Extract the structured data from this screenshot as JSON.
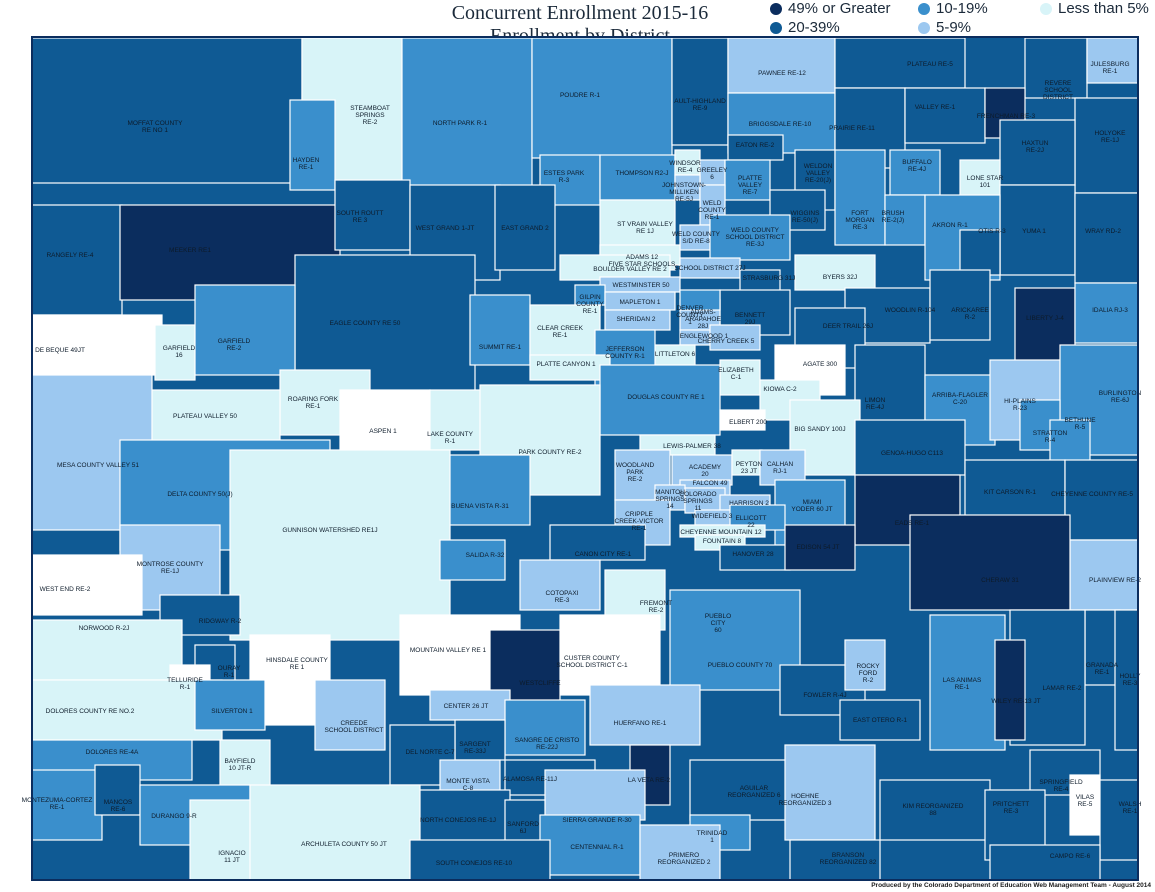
{
  "title": {
    "line1": "Concurrent Enrollment 2015-16",
    "line2": "Enrollment by District"
  },
  "colors": {
    "c49": "#0b2d5e",
    "c20": "#0f5a94",
    "c10": "#3a8fcc",
    "c5": "#9cc8f0",
    "c0": "#d8f4f8",
    "none": "#ffffff"
  },
  "legend": [
    {
      "label": "49% or Greater",
      "color": "#0b2d5e"
    },
    {
      "label": "10-19%",
      "color": "#3a8fcc"
    },
    {
      "label": "Less than 5%",
      "color": "#d8f4f8"
    },
    {
      "label": "20-39%",
      "color": "#0f5a94"
    },
    {
      "label": "5-9%",
      "color": "#9cc8f0"
    }
  ],
  "credit": "Produced by the Colorado Department of Education Web Management Team - August 2014",
  "districts": [
    {
      "name": "MOFFAT COUNTY\nRE NO 1",
      "cat": "c20"
    },
    {
      "name": "STEAMBOAT\nSPRINGS\nRE-2",
      "cat": "c0"
    },
    {
      "name": "NORTH PARK R-1",
      "cat": "c10"
    },
    {
      "name": "POUDRE R-1",
      "cat": "c10"
    },
    {
      "name": "AULT-HIGHLAND\nRE-9",
      "cat": "c20"
    },
    {
      "name": "PAWNEE RE-12",
      "cat": "c5"
    },
    {
      "name": "PLATEAU RE-5",
      "cat": "c20"
    },
    {
      "name": "REVERE\nSCHOOL\nDISTRICT",
      "cat": "c20"
    },
    {
      "name": "JULESBURG\nRE-1",
      "cat": "c5"
    },
    {
      "name": "HAYDEN\nRE-1",
      "cat": "c10"
    },
    {
      "name": "BRIGGSDALE RE-10",
      "cat": "c10"
    },
    {
      "name": "PRAIRIE RE-11",
      "cat": "c20"
    },
    {
      "name": "VALLEY RE-1",
      "cat": "c20"
    },
    {
      "name": "FRENCHMAN RE-3",
      "cat": "c49"
    },
    {
      "name": "HOLYOKE\nRE-1J",
      "cat": "c20"
    },
    {
      "name": "ESTES PARK\nR-3",
      "cat": "c10"
    },
    {
      "name": "THOMPSON R2-J",
      "cat": "c10"
    },
    {
      "name": "EATON RE-2",
      "cat": "c20"
    },
    {
      "name": "HAXTUN\nRE-2J",
      "cat": "c20"
    },
    {
      "name": "WINDSOR\nRE-4",
      "cat": "c0"
    },
    {
      "name": "GREELEY\n6",
      "cat": "c5"
    },
    {
      "name": "PLATTE\nVALLEY\nRE-7",
      "cat": "c10"
    },
    {
      "name": "WELDON\nVALLEY\nRE-20(J)",
      "cat": "c20"
    },
    {
      "name": "BUFFALO\nRE-4J",
      "cat": "c10"
    },
    {
      "name": "LONE STAR\n101",
      "cat": "c0"
    },
    {
      "name": "JOHNSTOWN-\nMILLIKEN\nRE-5J",
      "cat": "c5"
    },
    {
      "name": "WELD\nCOUNTY\nRE-1",
      "cat": "c5"
    },
    {
      "name": "WIGGINS\nRE-50(J)",
      "cat": "c20"
    },
    {
      "name": "FORT\nMORGAN\nRE-3",
      "cat": "c10"
    },
    {
      "name": "BRUSH\nRE-2(J)",
      "cat": "c10"
    },
    {
      "name": "YUMA 1",
      "cat": "c20"
    },
    {
      "name": "WRAY RD-2",
      "cat": "c20"
    },
    {
      "name": "RANGELY RE-4",
      "cat": "c20"
    },
    {
      "name": "MEEKER RE1",
      "cat": "c49"
    },
    {
      "name": "SOUTH ROUTT\nRE 3",
      "cat": "c20"
    },
    {
      "name": "WEST GRAND 1-JT",
      "cat": "c20"
    },
    {
      "name": "EAST GRAND 2",
      "cat": "c20"
    },
    {
      "name": "ST VRAIN VALLEY\nRE 1J",
      "cat": "c0"
    },
    {
      "name": "WELD COUNTY\nS/D RE-8",
      "cat": "c5"
    },
    {
      "name": "WELD COUNTY\nSCHOOL DISTRICT\nRE-3J",
      "cat": "c10"
    },
    {
      "name": "AKRON R-1",
      "cat": "c10"
    },
    {
      "name": "OTIS R-3",
      "cat": "c20"
    },
    {
      "name": "ADAMS 12\nFIVE STAR SCHOOLS",
      "cat": "c0"
    },
    {
      "name": "BOULDER VALLEY RE 2",
      "cat": "c0"
    },
    {
      "name": "SCHOOL DISTRICT 27J",
      "cat": "c5"
    },
    {
      "name": "BYERS 32J",
      "cat": "c0"
    },
    {
      "name": "WESTMINSTER 50",
      "cat": "c5"
    },
    {
      "name": "GILPIN\nCOUNTY\nRE-1",
      "cat": "c10"
    },
    {
      "name": "MAPLETON 1",
      "cat": "c5"
    },
    {
      "name": "STRASBURG 31J",
      "cat": "c20"
    },
    {
      "name": "BENNETT\n29J",
      "cat": "c20"
    },
    {
      "name": "WOODLIN R-104",
      "cat": "c20"
    },
    {
      "name": "ARICKAREE\nR-2",
      "cat": "c20"
    },
    {
      "name": "LIBERTY J-4",
      "cat": "c49"
    },
    {
      "name": "IDALIA RJ-3",
      "cat": "c10"
    },
    {
      "name": "SHERIDAN 2",
      "cat": "c5"
    },
    {
      "name": "ADAMS-\nARAPAHOE\n28J",
      "cat": "c5"
    },
    {
      "name": "DEER TRAIL 26J",
      "cat": "c20"
    },
    {
      "name": "ENGLEWOOD 1",
      "cat": "c5"
    },
    {
      "name": "CHERRY CREEK 5",
      "cat": "c5"
    },
    {
      "name": "LITTLETON 6",
      "cat": "c0"
    },
    {
      "name": "DENVER\nCOUNTY\n1",
      "cat": "c10"
    },
    {
      "name": "EAGLE COUNTY RE 50",
      "cat": "c20"
    },
    {
      "name": "SUMMIT RE-1",
      "cat": "c10"
    },
    {
      "name": "CLEAR CREEK\nRE-1",
      "cat": "c0"
    },
    {
      "name": "JEFFERSON\nCOUNTY R-1",
      "cat": "c10"
    },
    {
      "name": "DE BEQUE 49JT",
      "cat": "none"
    },
    {
      "name": "GARFIELD\n16",
      "cat": "c0"
    },
    {
      "name": "GARFIELD\nRE-2",
      "cat": "c10"
    },
    {
      "name": "PLATTE CANYON 1",
      "cat": "c0"
    },
    {
      "name": "ELIZABETH\nC-1",
      "cat": "c0"
    },
    {
      "name": "AGATE 300",
      "cat": "none"
    },
    {
      "name": "KIOWA C-2",
      "cat": "c0"
    },
    {
      "name": "ROARING FORK\nRE-1",
      "cat": "c0"
    },
    {
      "name": "DOUGLAS COUNTY RE 1",
      "cat": "c10"
    },
    {
      "name": "LIMON\nRE-4J",
      "cat": "c20"
    },
    {
      "name": "ARRIBA-FLAGLER\nC-20",
      "cat": "c10"
    },
    {
      "name": "HI-PLAINS\nR-23",
      "cat": "c5"
    },
    {
      "name": "BURLINGTON\nRE-6J",
      "cat": "c10"
    },
    {
      "name": "PLATEAU VALLEY 50",
      "cat": "c0"
    },
    {
      "name": "ASPEN 1",
      "cat": "none"
    },
    {
      "name": "LAKE COUNTY\nR-1",
      "cat": "c0"
    },
    {
      "name": "ELBERT 200",
      "cat": "none"
    },
    {
      "name": "BIG SANDY 100J",
      "cat": "c0"
    },
    {
      "name": "STRATTON\nR-4",
      "cat": "c10"
    },
    {
      "name": "BETHUNE\nR-5",
      "cat": "c10"
    },
    {
      "name": "MESA COUNTY VALLEY 51",
      "cat": "c5"
    },
    {
      "name": "PARK COUNTY RE-2",
      "cat": "c0"
    },
    {
      "name": "LEWIS-PALMER 38",
      "cat": "c0"
    },
    {
      "name": "WOODLAND\nPARK\nRE-2",
      "cat": "c5"
    },
    {
      "name": "ACADEMY\n20",
      "cat": "c5"
    },
    {
      "name": "PEYTON\n23 JT",
      "cat": "c0"
    },
    {
      "name": "CALHAN\nRJ-1",
      "cat": "c5"
    },
    {
      "name": "GENOA-HUGO C113",
      "cat": "c20"
    },
    {
      "name": "DELTA COUNTY 50(J)",
      "cat": "c10"
    },
    {
      "name": "FALCON 49",
      "cat": "c5"
    },
    {
      "name": "MANITOU\nSPRINGS\n14",
      "cat": "c5"
    },
    {
      "name": "COLORADO\nSPRINGS\n11",
      "cat": "c5"
    },
    {
      "name": "KIT CARSON R-1",
      "cat": "c20"
    },
    {
      "name": "CHEYENNE COUNTY RE-5",
      "cat": "c20"
    },
    {
      "name": "BUENA VISTA R-31",
      "cat": "c10"
    },
    {
      "name": "HARRISON 2",
      "cat": "c5"
    },
    {
      "name": "WIDEFIELD 3",
      "cat": "c5"
    },
    {
      "name": "MIAMI\nYODER 60 JT",
      "cat": "c10"
    },
    {
      "name": "CRIPPLE\nCREEK-VICTOR\nRE-1",
      "cat": "c5"
    },
    {
      "name": "ELLICOTT\n22",
      "cat": "c10"
    },
    {
      "name": "CHEYENNE MOUNTAIN 12",
      "cat": "c0"
    },
    {
      "name": "FOUNTAIN 8",
      "cat": "c0"
    },
    {
      "name": "EADS RE-1",
      "cat": "c49"
    },
    {
      "name": "GUNNISON WATERSHED RE1J",
      "cat": "c0"
    },
    {
      "name": "MONTROSE COUNTY\nRE-1J",
      "cat": "c5"
    },
    {
      "name": "SALIDA R-32",
      "cat": "c10"
    },
    {
      "name": "CANON CITY RE-1",
      "cat": "c20"
    },
    {
      "name": "HANOVER 28",
      "cat": "c20"
    },
    {
      "name": "EDISON 54 JT",
      "cat": "c49"
    },
    {
      "name": "PLAINVIEW RE-2",
      "cat": "c5"
    },
    {
      "name": "WEST END RE-2",
      "cat": "none"
    },
    {
      "name": "COTOPAXI\nRE-3",
      "cat": "c5"
    },
    {
      "name": "FREMONT\nRE-2",
      "cat": "c0"
    },
    {
      "name": "PUEBLO\nCITY\n60",
      "cat": "c5"
    },
    {
      "name": "CHERAW 31",
      "cat": "c49"
    },
    {
      "name": "GRANADA\nRE-1",
      "cat": "c20"
    },
    {
      "name": "HOLLY\nRE-3",
      "cat": "c20"
    },
    {
      "name": "RIDGWAY R-2",
      "cat": "c20"
    },
    {
      "name": "OURAY\nR-1",
      "cat": "c20"
    },
    {
      "name": "NORWOOD R-2J",
      "cat": "c0"
    },
    {
      "name": "TELLURIDE\nR-1",
      "cat": "none"
    },
    {
      "name": "HINSDALE COUNTY\nRE 1",
      "cat": "none"
    },
    {
      "name": "MOUNTAIN VALLEY RE 1",
      "cat": "none"
    },
    {
      "name": "CUSTER COUNTY\nSCHOOL DISTRICT C-1",
      "cat": "none"
    },
    {
      "name": "WESTCLIFFE",
      "cat": "c49"
    },
    {
      "name": "PUEBLO COUNTY 70",
      "cat": "c10"
    },
    {
      "name": "FOWLER R-4J",
      "cat": "c20"
    },
    {
      "name": "ROCKY\nFORD\nR-2",
      "cat": "c5"
    },
    {
      "name": "LAS ANIMAS\nRE-1",
      "cat": "c10"
    },
    {
      "name": "LAMAR RE-2",
      "cat": "c20"
    },
    {
      "name": "WILEY RE-13 JT",
      "cat": "c49"
    },
    {
      "name": "DOLORES COUNTY RE NO.2",
      "cat": "c0"
    },
    {
      "name": "SILVERTON 1",
      "cat": "c10"
    },
    {
      "name": "CREEDE\nSCHOOL DISTRICT",
      "cat": "c5"
    },
    {
      "name": "CENTER 26 JT",
      "cat": "c5"
    },
    {
      "name": "SANGRE DE CRISTO\nRE-22J",
      "cat": "c10"
    },
    {
      "name": "HUERFANO RE-1",
      "cat": "c5"
    },
    {
      "name": "EAST OTERO R-1",
      "cat": "c20"
    },
    {
      "name": "SARGENT\nRE-33J",
      "cat": "c20"
    },
    {
      "name": "DEL NORTE C-7",
      "cat": "c20"
    },
    {
      "name": "DOLORES RE-4A",
      "cat": "c10"
    },
    {
      "name": "BAYFIELD\n10 JT-R",
      "cat": "c0"
    },
    {
      "name": "MONTE VISTA\nC-8",
      "cat": "c5"
    },
    {
      "name": "ALAMOSA RE-11J",
      "cat": "c20"
    },
    {
      "name": "LA VETA RE-2",
      "cat": "c49"
    },
    {
      "name": "AGUILAR\nREORGANIZED 6",
      "cat": "c20"
    },
    {
      "name": "HOEHNE\nREORGANIZED 3",
      "cat": "c5"
    },
    {
      "name": "SPRINGFIELD\nRE-4",
      "cat": "c20"
    },
    {
      "name": "MONTEZUMA-CORTEZ\nRE-1",
      "cat": "c10"
    },
    {
      "name": "MANCOS\nRE-6",
      "cat": "c20"
    },
    {
      "name": "DURANGO 9-R",
      "cat": "c10"
    },
    {
      "name": "SIERRA GRANDE R-30",
      "cat": "c5"
    },
    {
      "name": "KIM REORGANIZED\n88",
      "cat": "c20"
    },
    {
      "name": "PRITCHETT\nRE-3",
      "cat": "c20"
    },
    {
      "name": "VILAS\nRE-5",
      "cat": "none"
    },
    {
      "name": "WALSH\nRE-1",
      "cat": "c20"
    },
    {
      "name": "NORTH CONEJOS RE-1J",
      "cat": "c20"
    },
    {
      "name": "SANFORD\n6J",
      "cat": "c20"
    },
    {
      "name": "CENTENNIAL R-1",
      "cat": "c10"
    },
    {
      "name": "TRINIDAD\n1",
      "cat": "c10"
    },
    {
      "name": "IGNACIO\n11 JT",
      "cat": "c0"
    },
    {
      "name": "ARCHULETA COUNTY 50 JT",
      "cat": "c0"
    },
    {
      "name": "SOUTH CONEJOS RE-10",
      "cat": "c20"
    },
    {
      "name": "PRIMERO\nREORGANIZED 2",
      "cat": "c5"
    },
    {
      "name": "BRANSON\nREORGANIZED 82",
      "cat": "c20"
    },
    {
      "name": "CAMPO RE-6",
      "cat": "c20"
    }
  ]
}
